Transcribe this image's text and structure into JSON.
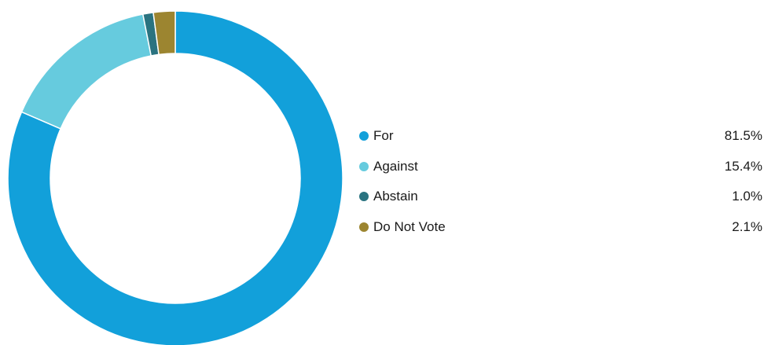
{
  "chart_data": {
    "type": "pie",
    "style": "donut",
    "legend_position": "right",
    "categories": [
      "For",
      "Against",
      "Abstain",
      "Do Not Vote"
    ],
    "values": [
      81.5,
      15.4,
      1.0,
      2.1
    ],
    "unit": "%",
    "value_labels": [
      "81.5%",
      "15.4%",
      "1.0%",
      "2.1%"
    ],
    "colors": [
      "#12a0da",
      "#66cbde",
      "#2a7380",
      "#9c8530"
    ]
  },
  "legend": {
    "items": [
      {
        "label": "For",
        "value": "81.5%"
      },
      {
        "label": "Against",
        "value": "15.4%"
      },
      {
        "label": "Abstain",
        "value": "1.0%"
      },
      {
        "label": "Do Not Vote",
        "value": "2.1%"
      }
    ]
  }
}
